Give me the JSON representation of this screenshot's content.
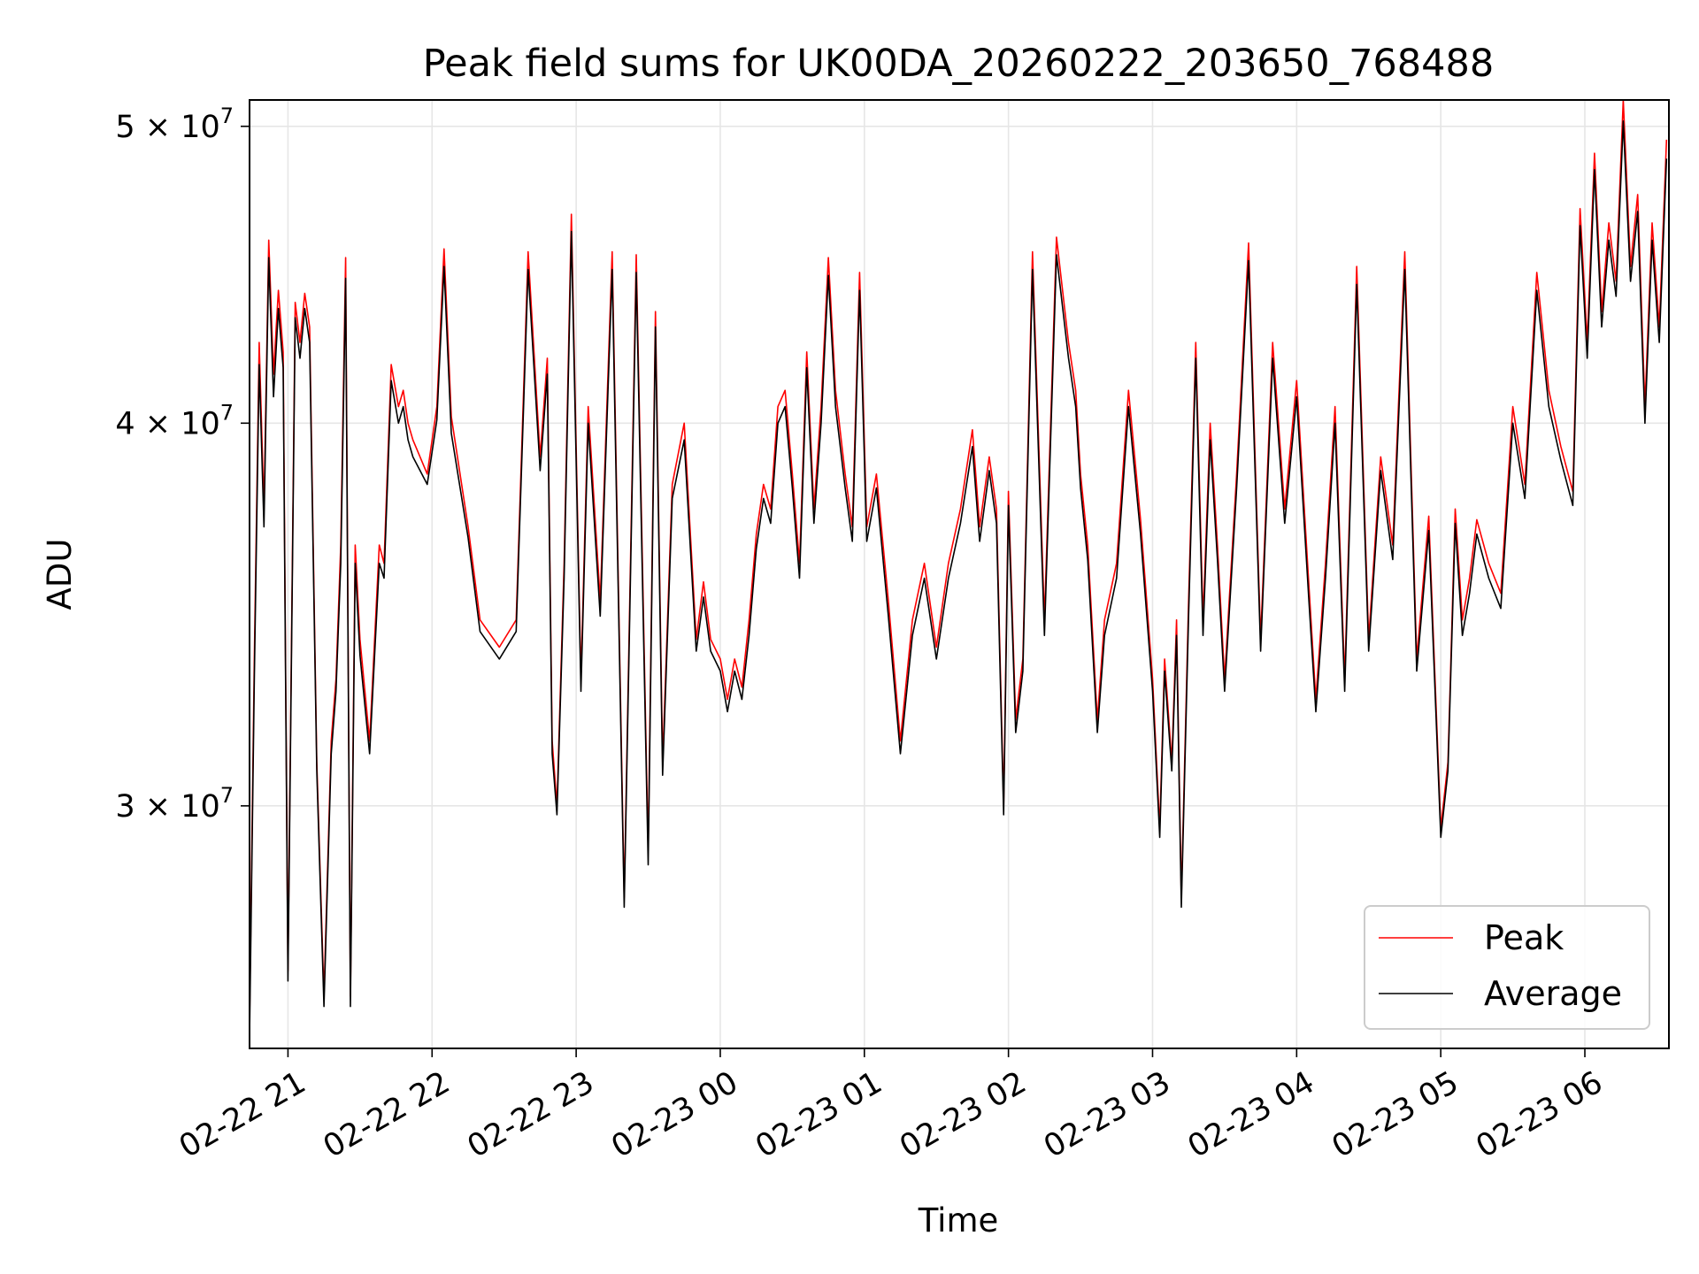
{
  "chart_data": {
    "type": "line",
    "title": "Peak field sums for UK00DA_20260222_203650_768488",
    "xlabel": "Time",
    "ylabel": "ADU",
    "xlim": [
      "2026-02-22 20:44",
      "2026-02-23 06:35"
    ],
    "ylim": [
      25000000,
      51000000
    ],
    "yscale": "log",
    "grid": true,
    "legend_position": "lower-right",
    "x_ticks": [
      {
        "label": "02-22 21",
        "value": "2026-02-22 21:00"
      },
      {
        "label": "02-22 22",
        "value": "2026-02-22 22:00"
      },
      {
        "label": "02-22 23",
        "value": "2026-02-22 23:00"
      },
      {
        "label": "02-23 00",
        "value": "2026-02-23 00:00"
      },
      {
        "label": "02-23 01",
        "value": "2026-02-23 01:00"
      },
      {
        "label": "02-23 02",
        "value": "2026-02-23 02:00"
      },
      {
        "label": "02-23 03",
        "value": "2026-02-23 03:00"
      },
      {
        "label": "02-23 04",
        "value": "2026-02-23 04:00"
      },
      {
        "label": "02-23 05",
        "value": "2026-02-23 05:00"
      },
      {
        "label": "02-23 06",
        "value": "2026-02-23 06:00"
      }
    ],
    "y_ticks": [
      {
        "mantissa": "3",
        "exponent": "7",
        "value": 30000000
      },
      {
        "mantissa": "4",
        "exponent": "7",
        "value": 40000000
      },
      {
        "mantissa": "5",
        "exponent": "7",
        "value": 50000000
      }
    ],
    "series": [
      {
        "name": "Peak",
        "color": "#ff0000",
        "x": [
          "2026-02-22 20:44",
          "2026-02-22 20:46",
          "2026-02-22 20:48",
          "2026-02-22 20:50",
          "2026-02-22 20:52",
          "2026-02-22 20:54",
          "2026-02-22 20:56",
          "2026-02-22 20:58",
          "2026-02-22 21:00",
          "2026-02-22 21:02",
          "2026-02-22 21:03",
          "2026-02-22 21:05",
          "2026-02-22 21:07",
          "2026-02-22 21:09",
          "2026-02-22 21:12",
          "2026-02-22 21:15",
          "2026-02-22 21:18",
          "2026-02-22 21:20",
          "2026-02-22 21:22",
          "2026-02-22 21:24",
          "2026-02-22 21:26",
          "2026-02-22 21:28",
          "2026-02-22 21:30",
          "2026-02-22 21:34",
          "2026-02-22 21:38",
          "2026-02-22 21:40",
          "2026-02-22 21:43",
          "2026-02-22 21:46",
          "2026-02-22 21:48",
          "2026-02-22 21:50",
          "2026-02-22 21:52",
          "2026-02-22 21:55",
          "2026-02-22 21:58",
          "2026-02-22 22:02",
          "2026-02-22 22:05",
          "2026-02-22 22:08",
          "2026-02-22 22:15",
          "2026-02-22 22:20",
          "2026-02-22 22:28",
          "2026-02-22 22:35",
          "2026-02-22 22:40",
          "2026-02-22 22:45",
          "2026-02-22 22:48",
          "2026-02-22 22:50",
          "2026-02-22 22:52",
          "2026-02-22 22:55",
          "2026-02-22 22:58",
          "2026-02-22 23:02",
          "2026-02-22 23:05",
          "2026-02-22 23:10",
          "2026-02-22 23:15",
          "2026-02-22 23:20",
          "2026-02-22 23:25",
          "2026-02-22 23:30",
          "2026-02-22 23:33",
          "2026-02-22 23:36",
          "2026-02-22 23:40",
          "2026-02-22 23:45",
          "2026-02-22 23:50",
          "2026-02-22 23:53",
          "2026-02-22 23:56",
          "2026-02-23 00:00",
          "2026-02-23 00:03",
          "2026-02-23 00:06",
          "2026-02-23 00:09",
          "2026-02-23 00:12",
          "2026-02-23 00:15",
          "2026-02-23 00:18",
          "2026-02-23 00:21",
          "2026-02-23 00:24",
          "2026-02-23 00:27",
          "2026-02-23 00:30",
          "2026-02-23 00:33",
          "2026-02-23 00:36",
          "2026-02-23 00:39",
          "2026-02-23 00:42",
          "2026-02-23 00:45",
          "2026-02-23 00:48",
          "2026-02-23 00:52",
          "2026-02-23 00:55",
          "2026-02-23 00:58",
          "2026-02-23 01:01",
          "2026-02-23 01:05",
          "2026-02-23 01:10",
          "2026-02-23 01:15",
          "2026-02-23 01:20",
          "2026-02-23 01:25",
          "2026-02-23 01:30",
          "2026-02-23 01:35",
          "2026-02-23 01:40",
          "2026-02-23 01:45",
          "2026-02-23 01:48",
          "2026-02-23 01:52",
          "2026-02-23 01:55",
          "2026-02-23 01:58",
          "2026-02-23 02:00",
          "2026-02-23 02:03",
          "2026-02-23 02:06",
          "2026-02-23 02:10",
          "2026-02-23 02:15",
          "2026-02-23 02:20",
          "2026-02-23 02:25",
          "2026-02-23 02:28",
          "2026-02-23 02:30",
          "2026-02-23 02:33",
          "2026-02-23 02:37",
          "2026-02-23 02:40",
          "2026-02-23 02:45",
          "2026-02-23 02:50",
          "2026-02-23 02:55",
          "2026-02-23 03:00",
          "2026-02-23 03:03",
          "2026-02-23 03:05",
          "2026-02-23 03:08",
          "2026-02-23 03:10",
          "2026-02-23 03:12",
          "2026-02-23 03:15",
          "2026-02-23 03:18",
          "2026-02-23 03:21",
          "2026-02-23 03:24",
          "2026-02-23 03:27",
          "2026-02-23 03:30",
          "2026-02-23 03:35",
          "2026-02-23 03:40",
          "2026-02-23 03:45",
          "2026-02-23 03:50",
          "2026-02-23 03:55",
          "2026-02-23 04:00",
          "2026-02-23 04:05",
          "2026-02-23 04:08",
          "2026-02-23 04:12",
          "2026-02-23 04:16",
          "2026-02-23 04:20",
          "2026-02-23 04:25",
          "2026-02-23 04:30",
          "2026-02-23 04:35",
          "2026-02-23 04:40",
          "2026-02-23 04:45",
          "2026-02-23 04:50",
          "2026-02-23 04:55",
          "2026-02-23 05:00",
          "2026-02-23 05:03",
          "2026-02-23 05:06",
          "2026-02-23 05:09",
          "2026-02-23 05:12",
          "2026-02-23 05:15",
          "2026-02-23 05:20",
          "2026-02-23 05:25",
          "2026-02-23 05:30",
          "2026-02-23 05:35",
          "2026-02-23 05:40",
          "2026-02-23 05:45",
          "2026-02-23 05:50",
          "2026-02-23 05:55",
          "2026-02-23 05:58",
          "2026-02-23 06:01",
          "2026-02-23 06:04",
          "2026-02-23 06:07",
          "2026-02-23 06:10",
          "2026-02-23 06:13",
          "2026-02-23 06:16",
          "2026-02-23 06:19",
          "2026-02-23 06:22",
          "2026-02-23 06:25",
          "2026-02-23 06:28",
          "2026-02-23 06:31",
          "2026-02-23 06:34"
        ],
        "y": [
          25500000,
          33500000,
          42500000,
          37500000,
          45900000,
          41500000,
          44200000,
          42200000,
          26500000,
          37200000,
          43800000,
          42500000,
          44100000,
          43000000,
          31000000,
          26000000,
          31500000,
          33000000,
          36500000,
          45300000,
          26000000,
          36500000,
          34000000,
          31500000,
          36500000,
          36000000,
          41800000,
          40500000,
          41000000,
          40000000,
          39500000,
          39000000,
          38500000,
          40500000,
          45600000,
          40200000,
          37000000,
          34500000,
          33800000,
          34500000,
          45500000,
          39000000,
          42000000,
          31500000,
          30000000,
          36000000,
          46800000,
          33000000,
          40500000,
          35000000,
          45500000,
          28000000,
          45400000,
          29000000,
          43500000,
          31000000,
          38200000,
          40000000,
          34000000,
          35500000,
          34000000,
          33500000,
          32500000,
          33500000,
          32800000,
          34500000,
          36800000,
          38200000,
          37500000,
          40500000,
          41000000,
          38500000,
          36000000,
          42200000,
          37500000,
          40500000,
          45300000,
          41000000,
          38500000,
          37000000,
          44800000,
          37000000,
          38500000,
          35000000,
          31500000,
          34500000,
          36000000,
          33800000,
          36000000,
          37500000,
          39800000,
          37000000,
          39000000,
          37500000,
          30000000,
          38000000,
          32000000,
          33500000,
          45500000,
          34500000,
          46000000,
          42500000,
          41000000,
          38500000,
          36500000,
          32000000,
          34500000,
          36000000,
          41000000,
          37200000,
          33000000,
          29500000,
          33500000,
          31000000,
          34500000,
          28000000,
          35000000,
          42500000,
          34500000,
          40000000,
          36500000,
          33000000,
          38500000,
          45800000,
          34000000,
          42500000,
          37500000,
          41300000,
          35500000,
          32500000,
          36000000,
          40500000,
          33000000,
          45000000,
          34000000,
          39000000,
          36500000,
          45500000,
          33500000,
          37300000,
          29500000,
          31000000,
          37500000,
          34500000,
          35600000,
          37200000,
          36000000,
          35200000,
          40500000,
          38200000,
          44800000,
          41000000,
          39300000,
          38000000,
          47000000,
          42500000,
          49000000,
          43500000,
          46500000,
          44500000,
          51000000,
          45000000,
          47500000,
          40500000,
          46500000,
          43000000,
          49500000
        ]
      },
      {
        "name": "Average",
        "color": "#000000",
        "x": [
          "2026-02-22 20:44",
          "2026-02-22 20:46",
          "2026-02-22 20:48",
          "2026-02-22 20:50",
          "2026-02-22 20:52",
          "2026-02-22 20:54",
          "2026-02-22 20:56",
          "2026-02-22 20:58",
          "2026-02-22 21:00",
          "2026-02-22 21:02",
          "2026-02-22 21:03",
          "2026-02-22 21:05",
          "2026-02-22 21:07",
          "2026-02-22 21:09",
          "2026-02-22 21:12",
          "2026-02-22 21:15",
          "2026-02-22 21:18",
          "2026-02-22 21:20",
          "2026-02-22 21:22",
          "2026-02-22 21:24",
          "2026-02-22 21:26",
          "2026-02-22 21:28",
          "2026-02-22 21:30",
          "2026-02-22 21:34",
          "2026-02-22 21:38",
          "2026-02-22 21:40",
          "2026-02-22 21:43",
          "2026-02-22 21:46",
          "2026-02-22 21:48",
          "2026-02-22 21:50",
          "2026-02-22 21:52",
          "2026-02-22 21:55",
          "2026-02-22 21:58",
          "2026-02-22 22:02",
          "2026-02-22 22:05",
          "2026-02-22 22:08",
          "2026-02-22 22:15",
          "2026-02-22 22:20",
          "2026-02-22 22:28",
          "2026-02-22 22:35",
          "2026-02-22 22:40",
          "2026-02-22 22:45",
          "2026-02-22 22:48",
          "2026-02-22 22:50",
          "2026-02-22 22:52",
          "2026-02-22 22:55",
          "2026-02-22 22:58",
          "2026-02-22 23:02",
          "2026-02-22 23:05",
          "2026-02-22 23:10",
          "2026-02-22 23:15",
          "2026-02-22 23:20",
          "2026-02-22 23:25",
          "2026-02-22 23:30",
          "2026-02-22 23:33",
          "2026-02-22 23:36",
          "2026-02-22 23:40",
          "2026-02-22 23:45",
          "2026-02-22 23:50",
          "2026-02-22 23:53",
          "2026-02-22 23:56",
          "2026-02-23 00:00",
          "2026-02-23 00:03",
          "2026-02-23 00:06",
          "2026-02-23 00:09",
          "2026-02-23 00:12",
          "2026-02-23 00:15",
          "2026-02-23 00:18",
          "2026-02-23 00:21",
          "2026-02-23 00:24",
          "2026-02-23 00:27",
          "2026-02-23 00:30",
          "2026-02-23 00:33",
          "2026-02-23 00:36",
          "2026-02-23 00:39",
          "2026-02-23 00:42",
          "2026-02-23 00:45",
          "2026-02-23 00:48",
          "2026-02-23 00:52",
          "2026-02-23 00:55",
          "2026-02-23 00:58",
          "2026-02-23 01:01",
          "2026-02-23 01:05",
          "2026-02-23 01:10",
          "2026-02-23 01:15",
          "2026-02-23 01:20",
          "2026-02-23 01:25",
          "2026-02-23 01:30",
          "2026-02-23 01:35",
          "2026-02-23 01:40",
          "2026-02-23 01:45",
          "2026-02-23 01:48",
          "2026-02-23 01:52",
          "2026-02-23 01:55",
          "2026-02-23 01:58",
          "2026-02-23 02:00",
          "2026-02-23 02:03",
          "2026-02-23 02:06",
          "2026-02-23 02:10",
          "2026-02-23 02:15",
          "2026-02-23 02:20",
          "2026-02-23 02:25",
          "2026-02-23 02:28",
          "2026-02-23 02:30",
          "2026-02-23 02:33",
          "2026-02-23 02:37",
          "2026-02-23 02:40",
          "2026-02-23 02:45",
          "2026-02-23 02:50",
          "2026-02-23 02:55",
          "2026-02-23 03:00",
          "2026-02-23 03:03",
          "2026-02-23 03:05",
          "2026-02-23 03:08",
          "2026-02-23 03:10",
          "2026-02-23 03:12",
          "2026-02-23 03:15",
          "2026-02-23 03:18",
          "2026-02-23 03:21",
          "2026-02-23 03:24",
          "2026-02-23 03:27",
          "2026-02-23 03:30",
          "2026-02-23 03:35",
          "2026-02-23 03:40",
          "2026-02-23 03:45",
          "2026-02-23 03:50",
          "2026-02-23 03:55",
          "2026-02-23 04:00",
          "2026-02-23 04:05",
          "2026-02-23 04:08",
          "2026-02-23 04:12",
          "2026-02-23 04:16",
          "2026-02-23 04:20",
          "2026-02-23 04:25",
          "2026-02-23 04:30",
          "2026-02-23 04:35",
          "2026-02-23 04:40",
          "2026-02-23 04:45",
          "2026-02-23 04:50",
          "2026-02-23 04:55",
          "2026-02-23 05:00",
          "2026-02-23 05:03",
          "2026-02-23 05:06",
          "2026-02-23 05:09",
          "2026-02-23 05:12",
          "2026-02-23 05:15",
          "2026-02-23 05:20",
          "2026-02-23 05:25",
          "2026-02-23 05:30",
          "2026-02-23 05:35",
          "2026-02-23 05:40",
          "2026-02-23 05:45",
          "2026-02-23 05:50",
          "2026-02-23 05:55",
          "2026-02-23 05:58",
          "2026-02-23 06:01",
          "2026-02-23 06:04",
          "2026-02-23 06:07",
          "2026-02-23 06:10",
          "2026-02-23 06:13",
          "2026-02-23 06:16",
          "2026-02-23 06:19",
          "2026-02-23 06:22",
          "2026-02-23 06:25",
          "2026-02-23 06:28",
          "2026-02-23 06:31",
          "2026-02-23 06:34"
        ],
        "y": [
          25200000,
          33000000,
          41800000,
          37000000,
          45300000,
          40800000,
          43600000,
          41700000,
          26300000,
          36800000,
          43300000,
          42000000,
          43600000,
          42500000,
          30800000,
          25800000,
          31200000,
          32700000,
          36000000,
          44600000,
          25800000,
          36000000,
          33600000,
          31200000,
          36000000,
          35600000,
          41300000,
          40000000,
          40500000,
          39500000,
          39000000,
          38600000,
          38200000,
          40100000,
          45000000,
          39700000,
          36700000,
          34200000,
          33500000,
          34200000,
          44900000,
          38600000,
          41500000,
          31200000,
          29800000,
          35600000,
          46200000,
          32700000,
          40000000,
          34600000,
          44900000,
          27800000,
          44800000,
          28700000,
          43000000,
          30700000,
          37800000,
          39500000,
          33700000,
          35100000,
          33700000,
          33200000,
          32200000,
          33200000,
          32500000,
          34100000,
          36400000,
          37800000,
          37100000,
          40000000,
          40500000,
          38100000,
          35600000,
          41700000,
          37100000,
          40000000,
          44700000,
          40500000,
          38100000,
          36600000,
          44200000,
          36600000,
          38100000,
          34600000,
          31200000,
          34100000,
          35600000,
          33500000,
          35600000,
          37100000,
          39300000,
          36600000,
          38600000,
          37100000,
          29800000,
          37600000,
          31700000,
          33200000,
          44900000,
          34100000,
          45400000,
          42000000,
          40500000,
          38100000,
          36100000,
          31700000,
          34100000,
          35600000,
          40500000,
          36800000,
          32700000,
          29300000,
          33200000,
          30800000,
          34100000,
          27800000,
          34600000,
          42000000,
          34100000,
          39500000,
          36100000,
          32700000,
          38100000,
          45200000,
          33700000,
          42000000,
          37100000,
          40800000,
          35100000,
          32200000,
          35600000,
          40000000,
          32700000,
          44400000,
          33700000,
          38600000,
          36100000,
          44900000,
          33200000,
          36900000,
          29300000,
          30800000,
          37100000,
          34100000,
          35200000,
          36800000,
          35600000,
          34800000,
          40000000,
          37800000,
          44200000,
          40500000,
          38900000,
          37600000,
          46400000,
          42000000,
          48400000,
          43000000,
          45900000,
          44000000,
          50200000,
          44500000,
          46900000,
          40000000,
          45900000,
          42500000,
          48800000
        ]
      }
    ]
  }
}
